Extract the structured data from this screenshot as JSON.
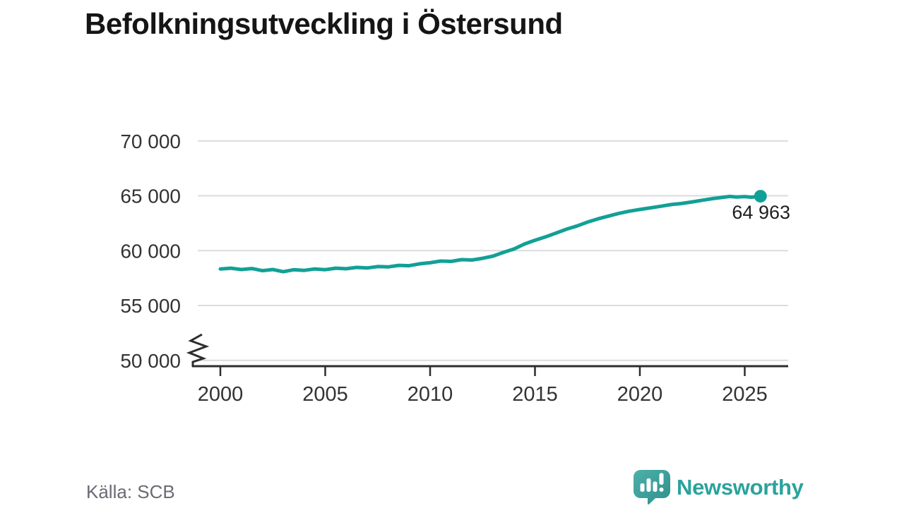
{
  "title": "Befolkningsutveckling i Östersund",
  "source": "Källa: SCB",
  "branding": {
    "name": "Newsworthy",
    "wordmark_color": "#2aa39c",
    "logo_colors": {
      "bubble_top": "#4db0aa",
      "bubble_bottom": "#2f8f8c",
      "glyphs": "#ffffff"
    }
  },
  "colors": {
    "line": "#12a096",
    "grid": "#dcdcdc",
    "axis": "#2d2d2d",
    "tick_text": "#333333",
    "title_text": "#151515",
    "source_text": "#6b6b74",
    "annotation_text": "#1f1f1f",
    "background": "#ffffff"
  },
  "chart_data": {
    "type": "line",
    "title": "Befolkningsutveckling i Östersund",
    "xlabel": "",
    "ylabel": "",
    "xlim": [
      2000,
      2027
    ],
    "ylim": [
      50000,
      70500
    ],
    "axis_break_below_y": 50000,
    "grid": "horizontal-only",
    "legend": "none",
    "yticks": [
      {
        "v": 50000,
        "label": "50 000"
      },
      {
        "v": 55000,
        "label": "55 000"
      },
      {
        "v": 60000,
        "label": "60 000"
      },
      {
        "v": 65000,
        "label": "65 000"
      },
      {
        "v": 70000,
        "label": "70 000"
      }
    ],
    "xticks": [
      {
        "v": 2000,
        "label": "2000"
      },
      {
        "v": 2005,
        "label": "2005"
      },
      {
        "v": 2010,
        "label": "2010"
      },
      {
        "v": 2015,
        "label": "2015"
      },
      {
        "v": 2020,
        "label": "2020"
      },
      {
        "v": 2025,
        "label": "2025"
      }
    ],
    "series": [
      {
        "points": [
          [
            2000.0,
            58330
          ],
          [
            2000.5,
            58400
          ],
          [
            2001.0,
            58280
          ],
          [
            2001.5,
            58370
          ],
          [
            2002.0,
            58180
          ],
          [
            2002.5,
            58280
          ],
          [
            2003.0,
            58080
          ],
          [
            2003.5,
            58260
          ],
          [
            2004.0,
            58200
          ],
          [
            2004.5,
            58330
          ],
          [
            2005.0,
            58270
          ],
          [
            2005.5,
            58400
          ],
          [
            2006.0,
            58350
          ],
          [
            2006.5,
            58470
          ],
          [
            2007.0,
            58420
          ],
          [
            2007.5,
            58550
          ],
          [
            2008.0,
            58520
          ],
          [
            2008.5,
            58660
          ],
          [
            2009.0,
            58630
          ],
          [
            2009.5,
            58800
          ],
          [
            2010.0,
            58900
          ],
          [
            2010.5,
            59050
          ],
          [
            2011.0,
            59020
          ],
          [
            2011.5,
            59180
          ],
          [
            2012.0,
            59150
          ],
          [
            2012.5,
            59300
          ],
          [
            2013.0,
            59500
          ],
          [
            2013.5,
            59850
          ],
          [
            2014.0,
            60150
          ],
          [
            2014.5,
            60600
          ],
          [
            2015.0,
            60950
          ],
          [
            2015.5,
            61250
          ],
          [
            2016.0,
            61600
          ],
          [
            2016.5,
            61950
          ],
          [
            2017.0,
            62250
          ],
          [
            2017.5,
            62600
          ],
          [
            2018.0,
            62900
          ],
          [
            2018.5,
            63150
          ],
          [
            2019.0,
            63400
          ],
          [
            2019.5,
            63600
          ],
          [
            2020.0,
            63750
          ],
          [
            2020.5,
            63900
          ],
          [
            2021.0,
            64050
          ],
          [
            2021.5,
            64200
          ],
          [
            2022.0,
            64300
          ],
          [
            2022.5,
            64450
          ],
          [
            2023.0,
            64600
          ],
          [
            2023.5,
            64750
          ],
          [
            2024.0,
            64870
          ],
          [
            2024.3,
            64940
          ],
          [
            2024.6,
            64890
          ],
          [
            2025.0,
            64930
          ],
          [
            2025.3,
            64870
          ],
          [
            2025.6,
            64920
          ],
          [
            2025.75,
            64963
          ]
        ]
      }
    ],
    "end_annotation": {
      "label": "64 963",
      "value": 64963,
      "x": 2025.75
    }
  }
}
